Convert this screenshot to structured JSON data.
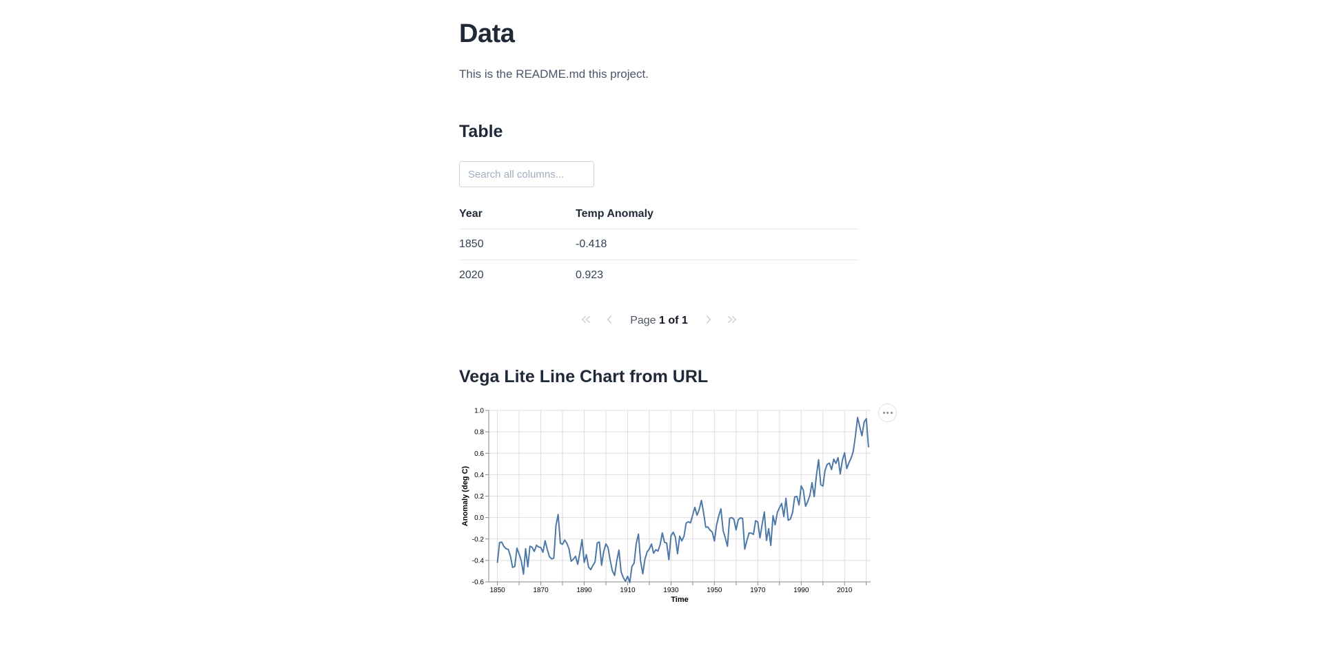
{
  "page": {
    "title": "Data",
    "intro": "This is the README.md this project."
  },
  "table_section": {
    "heading": "Table",
    "search_placeholder": "Search all columns...",
    "columns": [
      "Year",
      "Temp Anomaly"
    ],
    "rows": [
      [
        "1850",
        "-0.418"
      ],
      [
        "2020",
        "0.923"
      ]
    ],
    "pagination": {
      "page_label": "Page ",
      "page_value": "1 of 1",
      "icons": {
        "first": "chevrons-left",
        "previous": "chevron-left",
        "next": "chevron-right",
        "last": "chevrons-right"
      }
    }
  },
  "chart_section": {
    "heading": "Vega Lite Line Chart from URL",
    "actions_icon": "ellipsis-menu"
  },
  "chart_data": {
    "type": "line",
    "title": "",
    "xlabel": "Time",
    "ylabel": "Anomaly (deg C)",
    "legend": "none",
    "grid": "on",
    "line_color": "#4c78a8",
    "grid_color": "#dddddd",
    "axis_color": "#888888",
    "label_color": "#000000",
    "x_domain": [
      1846,
      2022
    ],
    "ylim": [
      -0.6,
      1.0
    ],
    "x_grid_range": [
      1850,
      2020
    ],
    "x_tick_interval": 10,
    "x_label_ticks": [
      1850,
      1870,
      1890,
      1910,
      1930,
      1950,
      1970,
      1990,
      2010
    ],
    "y_ticks": [
      -0.6,
      -0.4,
      -0.2,
      0,
      0.2,
      0.4,
      0.6,
      0.8,
      1
    ],
    "x_years": {
      "start": 1850,
      "end": 2021,
      "step": 1
    },
    "series": [
      {
        "name": "Temp Anomaly",
        "values": [
          -0.418,
          -0.233,
          -0.229,
          -0.27,
          -0.291,
          -0.297,
          -0.36,
          -0.465,
          -0.456,
          -0.285,
          -0.341,
          -0.403,
          -0.528,
          -0.29,
          -0.459,
          -0.268,
          -0.279,
          -0.316,
          -0.258,
          -0.275,
          -0.28,
          -0.323,
          -0.216,
          -0.3,
          -0.366,
          -0.386,
          -0.379,
          -0.071,
          0.029,
          -0.238,
          -0.25,
          -0.21,
          -0.239,
          -0.293,
          -0.408,
          -0.387,
          -0.361,
          -0.436,
          -0.327,
          -0.206,
          -0.419,
          -0.346,
          -0.461,
          -0.486,
          -0.447,
          -0.414,
          -0.236,
          -0.228,
          -0.445,
          -0.316,
          -0.246,
          -0.281,
          -0.402,
          -0.498,
          -0.54,
          -0.405,
          -0.303,
          -0.506,
          -0.56,
          -0.594,
          -0.548,
          -0.606,
          -0.454,
          -0.425,
          -0.243,
          -0.154,
          -0.408,
          -0.525,
          -0.387,
          -0.32,
          -0.294,
          -0.247,
          -0.333,
          -0.3,
          -0.313,
          -0.252,
          -0.143,
          -0.231,
          -0.238,
          -0.393,
          -0.171,
          -0.137,
          -0.182,
          -0.337,
          -0.174,
          -0.217,
          -0.174,
          -0.052,
          -0.039,
          -0.049,
          0.024,
          0.096,
          0.022,
          0.075,
          0.16,
          0.048,
          -0.09,
          -0.088,
          -0.118,
          -0.135,
          -0.218,
          -0.07,
          0.016,
          0.081,
          -0.121,
          -0.189,
          -0.268,
          -0.007,
          0.0,
          -0.016,
          -0.116,
          -0.02,
          -0.003,
          -0.008,
          -0.295,
          -0.212,
          -0.144,
          -0.145,
          -0.157,
          -0.029,
          -0.041,
          -0.189,
          -0.065,
          0.052,
          -0.213,
          -0.104,
          -0.26,
          0.017,
          -0.068,
          0.046,
          0.093,
          0.131,
          0.009,
          0.18,
          -0.025,
          -0.015,
          0.045,
          0.192,
          0.198,
          0.118,
          0.296,
          0.254,
          0.105,
          0.148,
          0.208,
          0.326,
          0.195,
          0.39,
          0.54,
          0.308,
          0.294,
          0.441,
          0.496,
          0.508,
          0.448,
          0.545,
          0.506,
          0.559,
          0.407,
          0.537,
          0.604,
          0.457,
          0.511,
          0.555,
          0.619,
          0.763,
          0.934,
          0.845,
          0.763,
          0.891,
          0.923,
          0.66
        ]
      }
    ]
  }
}
